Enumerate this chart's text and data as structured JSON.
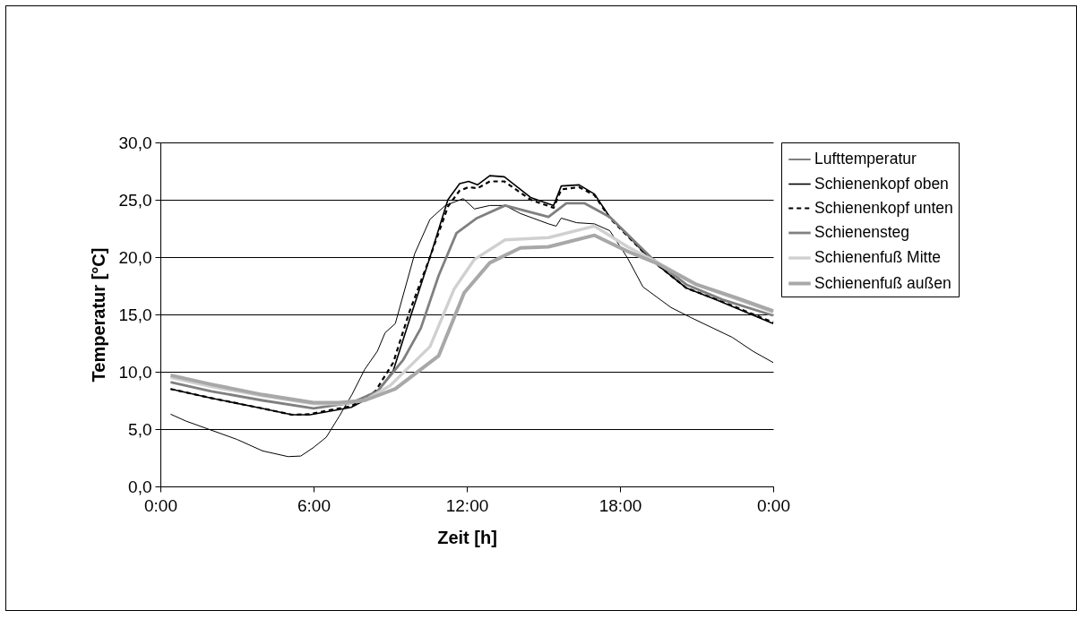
{
  "chart_data": {
    "type": "line",
    "xlabel": "Zeit [h]",
    "ylabel": "Temperatur [°C]",
    "xlim": [
      0,
      24
    ],
    "xticks": [
      {
        "value": 0,
        "label": "0:00"
      },
      {
        "value": 6,
        "label": "6:00"
      },
      {
        "value": 12,
        "label": "12:00"
      },
      {
        "value": 18,
        "label": "18:00"
      },
      {
        "value": 24,
        "label": "0:00"
      }
    ],
    "ylim": [
      0,
      30
    ],
    "yticks": [
      {
        "value": 0,
        "label": "0,0"
      },
      {
        "value": 5,
        "label": "5,0"
      },
      {
        "value": 10,
        "label": "10,0"
      },
      {
        "value": 15,
        "label": "15,0"
      },
      {
        "value": 20,
        "label": "20,0"
      },
      {
        "value": 25,
        "label": "25,0"
      },
      {
        "value": 30,
        "label": "30,0"
      }
    ],
    "grid": "y",
    "legend": "right",
    "marker": "none",
    "series": [
      {
        "name": "Lufttemperatur",
        "color": "#000000",
        "line_style": "solid",
        "x": [
          0.4,
          1,
          2,
          3,
          4,
          5,
          5.5,
          6,
          6.5,
          7,
          7.5,
          8,
          8.5,
          8.8,
          9.2,
          9.96,
          10.56,
          11.16,
          11.86,
          12.3,
          12.9,
          13.5,
          14.1,
          15.2,
          15.5,
          15.7,
          16.3,
          17.0,
          17.6,
          18.3,
          18.9,
          20.0,
          20.8,
          22.4,
          23.2,
          24
        ],
        "values": [
          6.3,
          5.7,
          4.9,
          4.1,
          3.1,
          2.6,
          2.65,
          3.4,
          4.3,
          6.1,
          8.0,
          10.2,
          11.8,
          13.4,
          14.2,
          20.3,
          23.3,
          24.5,
          25.1,
          24.2,
          24.5,
          24.5,
          23.8,
          22.9,
          22.7,
          23.4,
          23.0,
          22.9,
          22.3,
          19.9,
          17.4,
          15.6,
          14.7,
          13.0,
          11.8,
          10.8
        ]
      },
      {
        "name": "Schienenkopf oben",
        "color": "#000000",
        "line_style": "solid",
        "x": [
          0.4,
          2,
          4,
          5.16,
          5.86,
          6.5,
          7.47,
          8.42,
          9.12,
          9.75,
          10.56,
          11.26,
          11.72,
          12.07,
          12.42,
          12.9,
          13.47,
          14.5,
          15.4,
          15.7,
          16.4,
          17.0,
          17.6,
          19.2,
          20.6,
          21.8,
          24
        ],
        "values": [
          8.5,
          7.7,
          6.8,
          6.25,
          6.25,
          6.5,
          6.9,
          8.0,
          10.1,
          14.5,
          20.0,
          25.0,
          26.4,
          26.6,
          26.3,
          27.1,
          27.0,
          25.2,
          24.5,
          26.2,
          26.3,
          25.5,
          23.5,
          19.8,
          17.3,
          16.25,
          14.2
        ]
      },
      {
        "name": "Schienenkopf unten",
        "color": "#000000",
        "line_style": "dashed",
        "x": [
          0.4,
          2,
          4,
          5.16,
          5.86,
          6.5,
          7.47,
          8.42,
          9.12,
          9.75,
          10.56,
          11.26,
          11.72,
          12.07,
          12.42,
          12.9,
          13.47,
          14.5,
          15.4,
          15.7,
          16.4,
          17.0,
          17.6,
          19.2,
          20.6,
          21.8,
          24
        ],
        "values": [
          8.5,
          7.7,
          6.8,
          6.25,
          6.3,
          6.6,
          7.0,
          8.3,
          10.8,
          15.2,
          20.0,
          24.4,
          25.8,
          26.1,
          26.0,
          26.6,
          26.6,
          25.0,
          24.3,
          25.9,
          26.1,
          25.4,
          23.4,
          19.8,
          17.3,
          16.3,
          14.3
        ]
      },
      {
        "name": "Schienensteg",
        "color": "#808080",
        "line_style": "solid",
        "x": [
          0.4,
          2,
          4,
          6,
          7.5,
          8.5,
          9.5,
          10.2,
          10.9,
          11.6,
          12.4,
          13.5,
          15.2,
          15.9,
          16.6,
          17.6,
          19.2,
          20.6,
          22,
          24
        ],
        "values": [
          9.1,
          8.3,
          7.5,
          6.8,
          7.3,
          8.3,
          11.0,
          13.8,
          18.4,
          22.1,
          23.4,
          24.5,
          23.5,
          24.7,
          24.7,
          23.5,
          20.0,
          17.6,
          16.3,
          14.9
        ]
      },
      {
        "name": "Schienenfuß Mitte",
        "color": "#d0d0d0",
        "line_style": "solid",
        "x": [
          0.4,
          2,
          4,
          6,
          7,
          8,
          9,
          10.56,
          11.5,
          12.3,
          13.5,
          15.2,
          17.0,
          18.3,
          19.5,
          21,
          22.5,
          24
        ],
        "values": [
          9.5,
          8.7,
          7.9,
          7.2,
          7.2,
          7.5,
          8.8,
          12.2,
          17.2,
          19.8,
          21.5,
          21.7,
          22.7,
          20.9,
          19.5,
          17.6,
          16.4,
          15.2
        ]
      },
      {
        "name": "Schienenfuß außen",
        "color": "#a8a8a8",
        "line_style": "solid",
        "x": [
          0.4,
          2,
          4,
          6,
          7,
          8,
          9.2,
          10.9,
          11.9,
          12.9,
          14.1,
          15.2,
          17.0,
          18.3,
          19.5,
          21,
          22.5,
          24
        ],
        "values": [
          9.7,
          8.9,
          8.0,
          7.3,
          7.3,
          7.5,
          8.5,
          11.4,
          16.9,
          19.5,
          20.8,
          20.9,
          21.9,
          20.5,
          19.4,
          17.6,
          16.5,
          15.3
        ]
      }
    ]
  }
}
